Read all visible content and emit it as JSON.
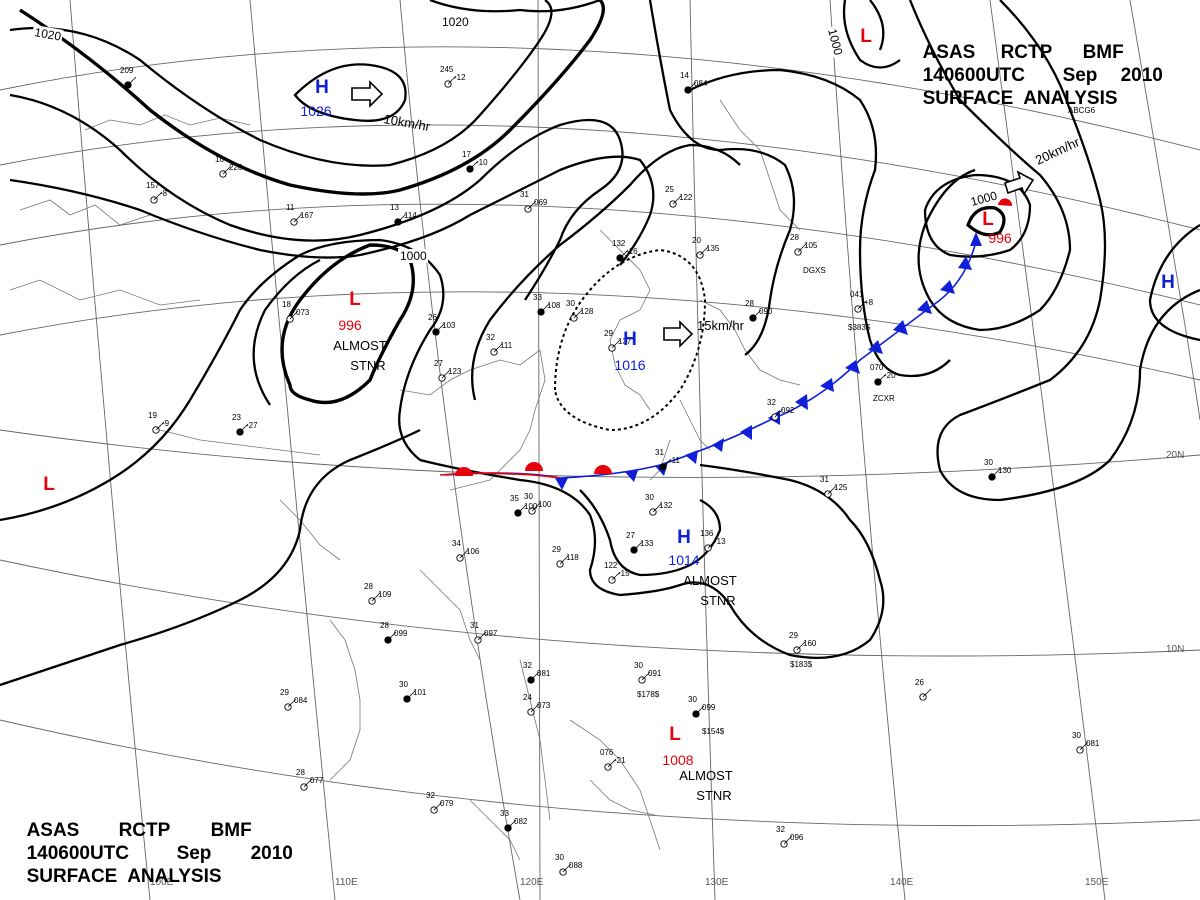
{
  "header": {
    "line1": [
      "ASAS",
      "RCTP",
      "BMF"
    ],
    "line2": [
      "140600UTC",
      "Sep",
      "2010"
    ],
    "line3": "SURFACE  ANALYSIS"
  },
  "colors": {
    "low": "#e8000b",
    "high": "#1020d8",
    "isobar": "#000000",
    "grid": "#666666",
    "coast": "#777777",
    "front_warm": "#e8000b",
    "front_cold": "#1020d8"
  },
  "grid_labels": {
    "lon": [
      "100E",
      "110E",
      "120E",
      "130E",
      "140E",
      "150E"
    ],
    "lat": [
      "20N",
      "10N"
    ]
  },
  "isobar_labels": [
    "1020",
    "1020",
    "1000",
    "1000",
    "1000"
  ],
  "pressure_systems": [
    {
      "type": "high",
      "letter": "H",
      "value": "1026"
    },
    {
      "type": "low",
      "letter": "L",
      "value": "996",
      "note": [
        "ALMOST",
        "STNR"
      ]
    },
    {
      "type": "high",
      "letter": "H",
      "value": "1016"
    },
    {
      "type": "high",
      "letter": "H",
      "value": "1014",
      "note": [
        "ALMOST",
        "STNR"
      ]
    },
    {
      "type": "low",
      "letter": "L",
      "value": "1008",
      "note": [
        "ALMOST",
        "STNR"
      ]
    },
    {
      "type": "low",
      "letter": "L",
      "value": "996"
    },
    {
      "type": "low",
      "letter": "L",
      "value": ""
    },
    {
      "type": "low",
      "letter": "L",
      "value": ""
    },
    {
      "type": "high",
      "letter": "H",
      "value": ""
    }
  ],
  "motion_labels": [
    "10km/hr",
    "15km/hr",
    "20km/hr"
  ],
  "stations": [
    {
      "t": "209",
      "p": ""
    },
    {
      "t": "245",
      "p": "-12"
    },
    {
      "t": "16",
      "p": "226"
    },
    {
      "t": "17",
      "p": "-10"
    },
    {
      "t": "157",
      "p": "-8"
    },
    {
      "t": "11",
      "p": "167"
    },
    {
      "t": "13",
      "p": "114"
    },
    {
      "t": "31",
      "p": "069"
    },
    {
      "t": "25",
      "p": "122"
    },
    {
      "t": "14",
      "p": "084"
    },
    {
      "t": "20",
      "p": "135"
    },
    {
      "t": "28",
      "p": "105"
    },
    {
      "t": "33",
      "p": "108"
    },
    {
      "t": "30",
      "p": "128"
    },
    {
      "t": "29",
      "p": "137"
    },
    {
      "t": "26",
      "p": "103"
    },
    {
      "t": "32",
      "p": "111"
    },
    {
      "t": "27",
      "p": "123"
    },
    {
      "t": "28",
      "p": "090"
    },
    {
      "t": "32",
      "p": "092"
    },
    {
      "t": "30",
      "p": "100"
    },
    {
      "t": "35",
      "p": "100"
    },
    {
      "t": "34",
      "p": "106"
    },
    {
      "t": "29",
      "p": "118"
    },
    {
      "t": "27",
      "p": "133"
    },
    {
      "t": "122",
      "p": "-15"
    },
    {
      "t": "28",
      "p": "109"
    },
    {
      "t": "28",
      "p": "099"
    },
    {
      "t": "31",
      "p": "097"
    },
    {
      "t": "29",
      "p": "084"
    },
    {
      "t": "30",
      "p": "101"
    },
    {
      "t": "28",
      "p": "077"
    },
    {
      "t": "32",
      "p": "079"
    },
    {
      "t": "32",
      "p": "081"
    },
    {
      "t": "24",
      "p": "073"
    },
    {
      "t": "30",
      "p": "091"
    },
    {
      "t": "30",
      "p": "099"
    },
    {
      "t": "29",
      "p": "160"
    },
    {
      "t": "31",
      "p": "125"
    },
    {
      "t": "30",
      "p": "130"
    },
    {
      "t": "30",
      "p": "081"
    },
    {
      "t": "32",
      "p": "096"
    },
    {
      "t": "33",
      "p": "082"
    },
    {
      "t": "30",
      "p": "088"
    },
    {
      "t": "076",
      "p": "-21"
    },
    {
      "t": "070",
      "p": "-20"
    },
    {
      "t": "041",
      "p": "+8"
    },
    {
      "t": "26",
      "p": ""
    },
    {
      "t": "23",
      "p": "-27"
    },
    {
      "t": "19",
      "p": "-9"
    },
    {
      "t": "18",
      "p": "073"
    },
    {
      "t": "132",
      "p": "-16"
    },
    {
      "t": "30",
      "p": "132"
    },
    {
      "t": "136",
      "p": "-13"
    },
    {
      "t": "31",
      "p": "-11"
    }
  ],
  "station_codes": [
    "DGXS",
    "ZCXR",
    "ABCG6",
    "$383$",
    "$183$",
    "$178$",
    "$154$"
  ]
}
